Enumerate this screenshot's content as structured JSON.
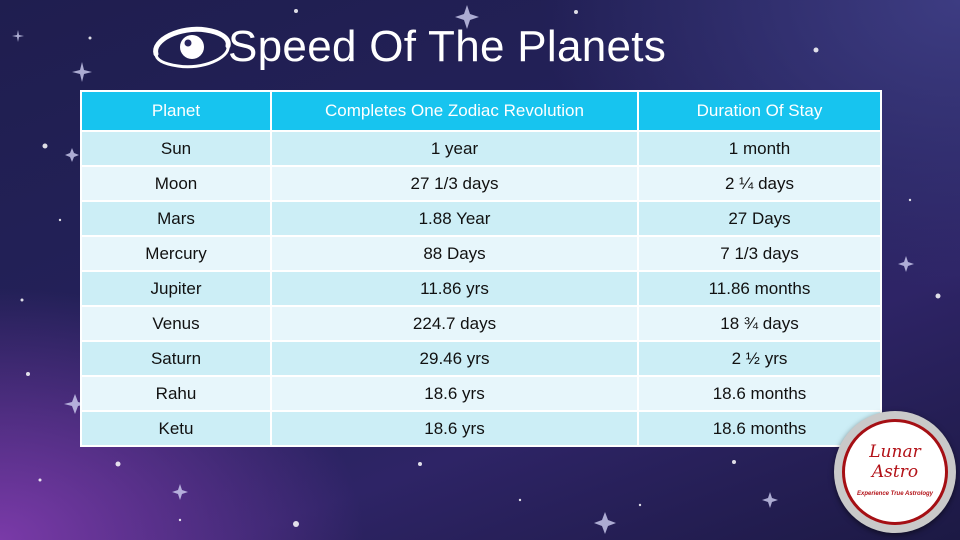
{
  "slide": {
    "title": "Speed Of The Planets",
    "accent_color": "#17c4ef",
    "icon": "planet-orbit-icon"
  },
  "table": {
    "headers": [
      "Planet",
      "Completes One Zodiac Revolution",
      "Duration Of Stay"
    ],
    "rows": [
      [
        "Sun",
        "1 year",
        "1 month"
      ],
      [
        "Moon",
        "27 1/3 days",
        "2 ¼ days"
      ],
      [
        "Mars",
        "1.88 Year",
        "27 Days"
      ],
      [
        "Mercury",
        "88 Days",
        "7 1/3 days"
      ],
      [
        "Jupiter",
        "11.86 yrs",
        "11.86 months"
      ],
      [
        "Venus",
        "224.7 days",
        "18 ¾ days"
      ],
      [
        "Saturn",
        "29.46 yrs",
        "2 ½ yrs"
      ],
      [
        "Rahu",
        "18.6 yrs",
        "18.6 months"
      ],
      [
        "Ketu",
        "18.6 yrs",
        "18.6 months"
      ]
    ]
  },
  "logo": {
    "line1": "Lunar",
    "line2": "Astro",
    "tagline": "Experience True Astrology",
    "color": "#b31218"
  }
}
